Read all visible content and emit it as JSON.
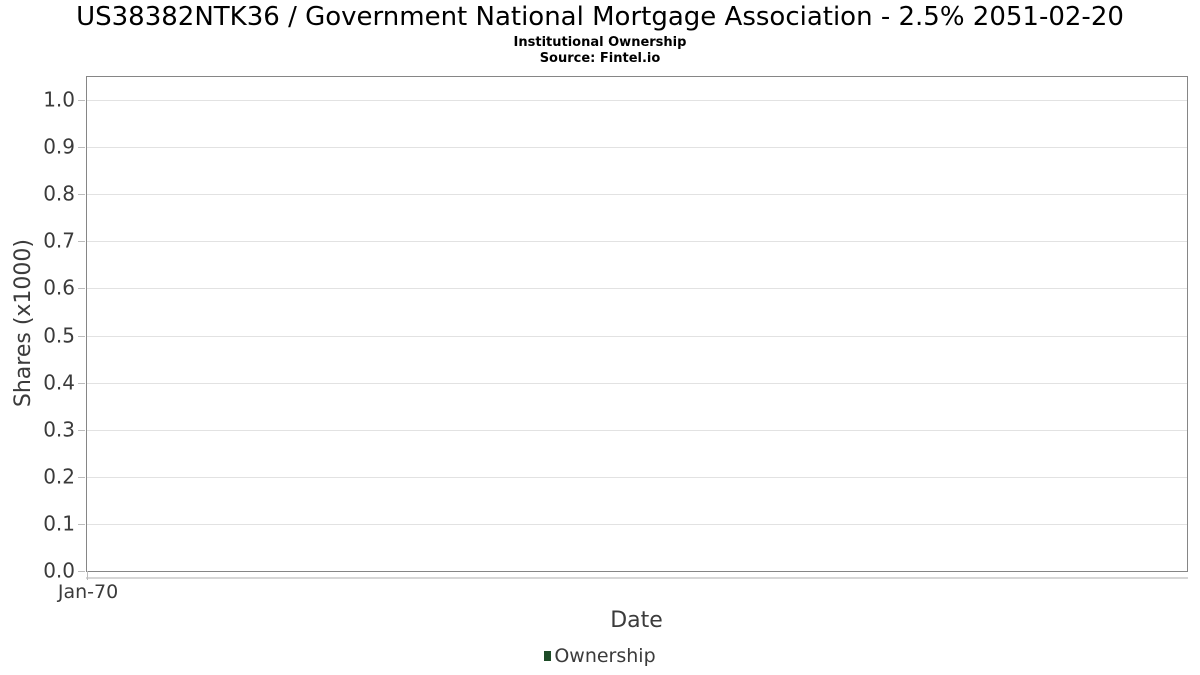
{
  "chart_data": {
    "type": "bar",
    "title": "US38382NTK36 / Government National Mortgage Association - 2.5% 2051-02-20",
    "subtitle": "Institutional Ownership",
    "source": "Source: Fintel.io",
    "xlabel": "Date",
    "ylabel": "Shares (x1000)",
    "x_tick_labels": [
      "Jan-70"
    ],
    "y_ticks": [
      0.0,
      0.1,
      0.2,
      0.3,
      0.4,
      0.5,
      0.6,
      0.7,
      0.8,
      0.9,
      1.0
    ],
    "ylim": [
      0,
      1.05
    ],
    "grid": "horizontal",
    "legend_position": "bottom-center",
    "series": [
      {
        "name": "Ownership",
        "color": "#1d4b27",
        "x": [],
        "values": []
      }
    ],
    "colors": {
      "title_text": "#000000",
      "axis_text": "#3b3b3b",
      "plot_border": "#868686",
      "gridline": "#e2e2e2",
      "axis_line": "#d6d6d6",
      "background": "#ffffff"
    }
  }
}
